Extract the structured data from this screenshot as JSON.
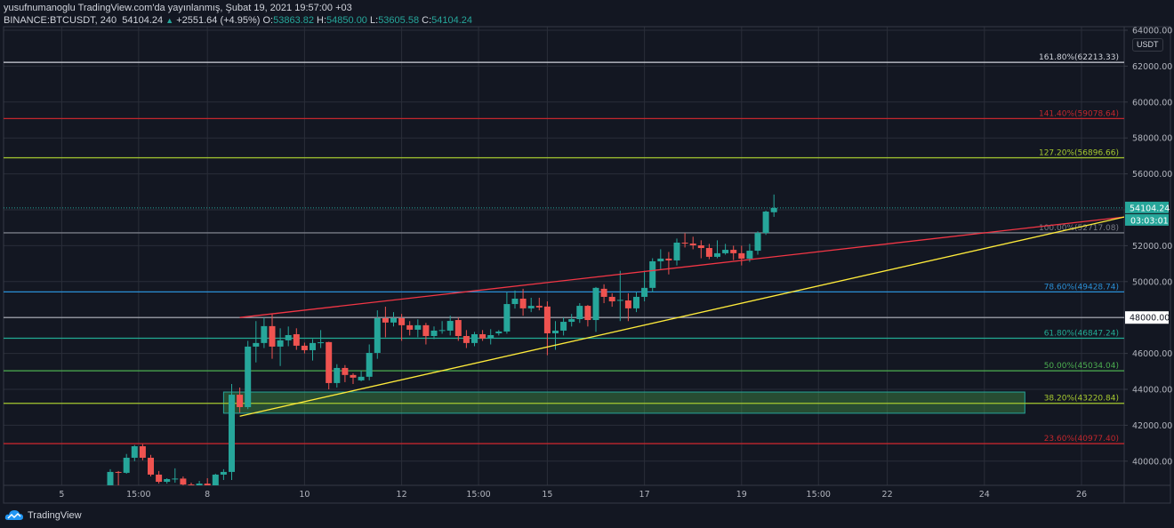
{
  "header": {
    "line1": "yusufnumanoglu TradingView.com'da yayınlanmış, Şubat 19, 2021 19:57:00 +03",
    "symbol": "BINANCE:BTCUSDT, 240",
    "last": "54104.24",
    "change": "+2551.64 (+4.95%)",
    "o_label": "O:",
    "o": "53863.82",
    "h_label": "H:",
    "h": "54850.00",
    "l_label": "L:",
    "l": "53605.58",
    "c_label": "C:",
    "c": "54104.24"
  },
  "currency": "USDT",
  "brand": "TradingView",
  "colors": {
    "bg": "#131722",
    "up": "#26a69a",
    "down": "#ef5350",
    "grid": "#2a2e39",
    "axis_text": "#b2b5be"
  },
  "chart_data": {
    "type": "candlestick",
    "price_ticks": [
      40000,
      42000,
      44000,
      46000,
      48000,
      50000,
      52000,
      54000,
      56000,
      58000,
      60000,
      62000,
      64000
    ],
    "price_range": [
      38650,
      64200
    ],
    "time_ticks": [
      {
        "label": "5",
        "bar": -6
      },
      {
        "label": "15:00",
        "bar": 3.5
      },
      {
        "label": "8",
        "bar": 12
      },
      {
        "label": "10",
        "bar": 24
      },
      {
        "label": "12",
        "bar": 36
      },
      {
        "label": "15:00",
        "bar": 45.5
      },
      {
        "label": "15",
        "bar": 54
      },
      {
        "label": "17",
        "bar": 66
      },
      {
        "label": "19",
        "bar": 78
      },
      {
        "label": "15:00",
        "bar": 87.5
      },
      {
        "label": "22",
        "bar": 96
      },
      {
        "label": "24",
        "bar": 108
      },
      {
        "label": "26",
        "bar": 120
      }
    ],
    "candles_ochl": [
      [
        38656,
        39400,
        39550,
        38600
      ],
      [
        39400,
        39350,
        39450,
        38650
      ],
      [
        39350,
        40190,
        40400,
        39300
      ],
      [
        40190,
        40830,
        40900,
        40000
      ],
      [
        40830,
        40190,
        40950,
        40050
      ],
      [
        40190,
        39250,
        40350,
        39150
      ],
      [
        39250,
        38850,
        39450,
        38750
      ],
      [
        38850,
        39000,
        39050,
        38750
      ],
      [
        39000,
        39030,
        39600,
        38800
      ],
      [
        39030,
        38700,
        39150,
        38600
      ],
      [
        38700,
        38500,
        38800,
        38300
      ],
      [
        38500,
        38750,
        38900,
        38400
      ],
      [
        38750,
        38650,
        39050,
        38500
      ],
      [
        38650,
        39250,
        39300,
        38600
      ],
      [
        39250,
        39400,
        39550,
        38950
      ],
      [
        39400,
        43700,
        44300,
        38950
      ],
      [
        43700,
        43010,
        44100,
        42700
      ],
      [
        43010,
        46380,
        46700,
        42900
      ],
      [
        46380,
        46580,
        47800,
        45500
      ],
      [
        46580,
        47520,
        48000,
        46300
      ],
      [
        47520,
        46380,
        48200,
        45700
      ],
      [
        46380,
        46730,
        47400,
        45300
      ],
      [
        46730,
        47020,
        47500,
        46400
      ],
      [
        47070,
        46430,
        47400,
        46200
      ],
      [
        46430,
        46180,
        46600,
        46000
      ],
      [
        46180,
        46580,
        46800,
        45600
      ],
      [
        46580,
        46620,
        47300,
        46300
      ],
      [
        46630,
        44350,
        46650,
        44000
      ],
      [
        44350,
        45190,
        45400,
        44100
      ],
      [
        45190,
        44800,
        45350,
        44400
      ],
      [
        44800,
        44650,
        44900,
        44300
      ],
      [
        44500,
        44700,
        45050,
        44450
      ],
      [
        44700,
        46030,
        46500,
        44500
      ],
      [
        46030,
        47960,
        48400,
        45700
      ],
      [
        47960,
        47720,
        48600,
        46900
      ],
      [
        47720,
        47960,
        48300,
        47500
      ],
      [
        47960,
        47570,
        48200,
        46700
      ],
      [
        47570,
        47320,
        47800,
        47000
      ],
      [
        47320,
        47570,
        47900,
        46900
      ],
      [
        47570,
        46970,
        47700,
        46500
      ],
      [
        46970,
        47270,
        47500,
        46800
      ],
      [
        47270,
        47300,
        47800,
        47100
      ],
      [
        47270,
        47810,
        48100,
        47000
      ],
      [
        47860,
        46970,
        48000,
        46700
      ],
      [
        46970,
        46580,
        47300,
        46300
      ],
      [
        46580,
        47070,
        47200,
        46400
      ],
      [
        47070,
        46830,
        47300,
        46700
      ],
      [
        46830,
        47020,
        47350,
        46500
      ],
      [
        47120,
        47220,
        47300,
        47000
      ],
      [
        47220,
        48750,
        49400,
        47100
      ],
      [
        48750,
        49050,
        49500,
        48500
      ],
      [
        49050,
        48510,
        49600,
        48100
      ],
      [
        48510,
        48650,
        49100,
        48300
      ],
      [
        48650,
        48560,
        49100,
        48400
      ],
      [
        48610,
        47120,
        48900,
        45900
      ],
      [
        47120,
        47270,
        47800,
        46200
      ],
      [
        47270,
        47760,
        48000,
        47000
      ],
      [
        47760,
        47910,
        48200,
        47500
      ],
      [
        47910,
        48650,
        48800,
        47700
      ],
      [
        48650,
        47860,
        48700,
        47500
      ],
      [
        47860,
        49650,
        49700,
        47200
      ],
      [
        49600,
        49150,
        49850,
        48800
      ],
      [
        49150,
        48900,
        49350,
        48600
      ],
      [
        48950,
        48980,
        50600,
        47800
      ],
      [
        48950,
        48510,
        49350,
        47800
      ],
      [
        48510,
        49150,
        49400,
        48300
      ],
      [
        49150,
        49650,
        50600,
        48900
      ],
      [
        49650,
        51130,
        51300,
        49400
      ],
      [
        51130,
        51280,
        51800,
        50700
      ],
      [
        51280,
        51180,
        51650,
        50400
      ],
      [
        51180,
        52170,
        52400,
        50900
      ],
      [
        52170,
        52120,
        52700,
        51900
      ],
      [
        52120,
        52020,
        52500,
        51800
      ],
      [
        52020,
        51870,
        52300,
        51300
      ],
      [
        51870,
        51380,
        52100,
        51250
      ],
      [
        51380,
        51580,
        52300,
        51300
      ],
      [
        51580,
        51770,
        52100,
        51500
      ],
      [
        51770,
        51580,
        52000,
        51200
      ],
      [
        51580,
        51280,
        52000,
        50900
      ],
      [
        51280,
        51720,
        52100,
        51100
      ],
      [
        51720,
        52710,
        52800,
        51500
      ],
      [
        52710,
        53900,
        53950,
        52600
      ],
      [
        53863.82,
        54104.24,
        54850,
        53605.58
      ]
    ],
    "fib_levels": [
      {
        "label": "161.80%(62213.33)",
        "price": 62213.33,
        "color": "#d1d4dc"
      },
      {
        "label": "141.40%(59078.64)",
        "price": 59078.64,
        "color": "#c2272d"
      },
      {
        "label": "127.20%(56896.66)",
        "price": 56896.66,
        "color": "#a6c930"
      },
      {
        "label": "100.00%(52717.08)",
        "price": 52717.08,
        "color": "#787b86"
      },
      {
        "label": "78.60%(49428.74)",
        "price": 49428.74,
        "color": "#2a8fd6"
      },
      {
        "label": "61.80%(46847.24)",
        "price": 46847.24,
        "color": "#22ab94"
      },
      {
        "label": "50.00%(45034.04)",
        "price": 45034.04,
        "color": "#4caf50"
      },
      {
        "label": "38.20%(43220.84)",
        "price": 43220.84,
        "color": "#a6c930"
      },
      {
        "label": "23.60%(40977.40)",
        "price": 40977.4,
        "color": "#c2272d"
      }
    ],
    "horizontal_line": {
      "price": 48000,
      "label": "48000.00"
    },
    "last_price_label": "54104.24",
    "countdown_label": "03:03:01",
    "trendlines": [
      {
        "from": [
          16,
          48000
        ],
        "to": [
          125.3,
          53600
        ],
        "color": "#f23645"
      },
      {
        "from": [
          16,
          42500
        ],
        "to": [
          125.3,
          53600
        ],
        "color": "#ffeb3b"
      }
    ],
    "zone": {
      "bars": [
        14,
        113
      ],
      "prices": [
        42670,
        43850
      ],
      "color": "#4caf50"
    }
  }
}
